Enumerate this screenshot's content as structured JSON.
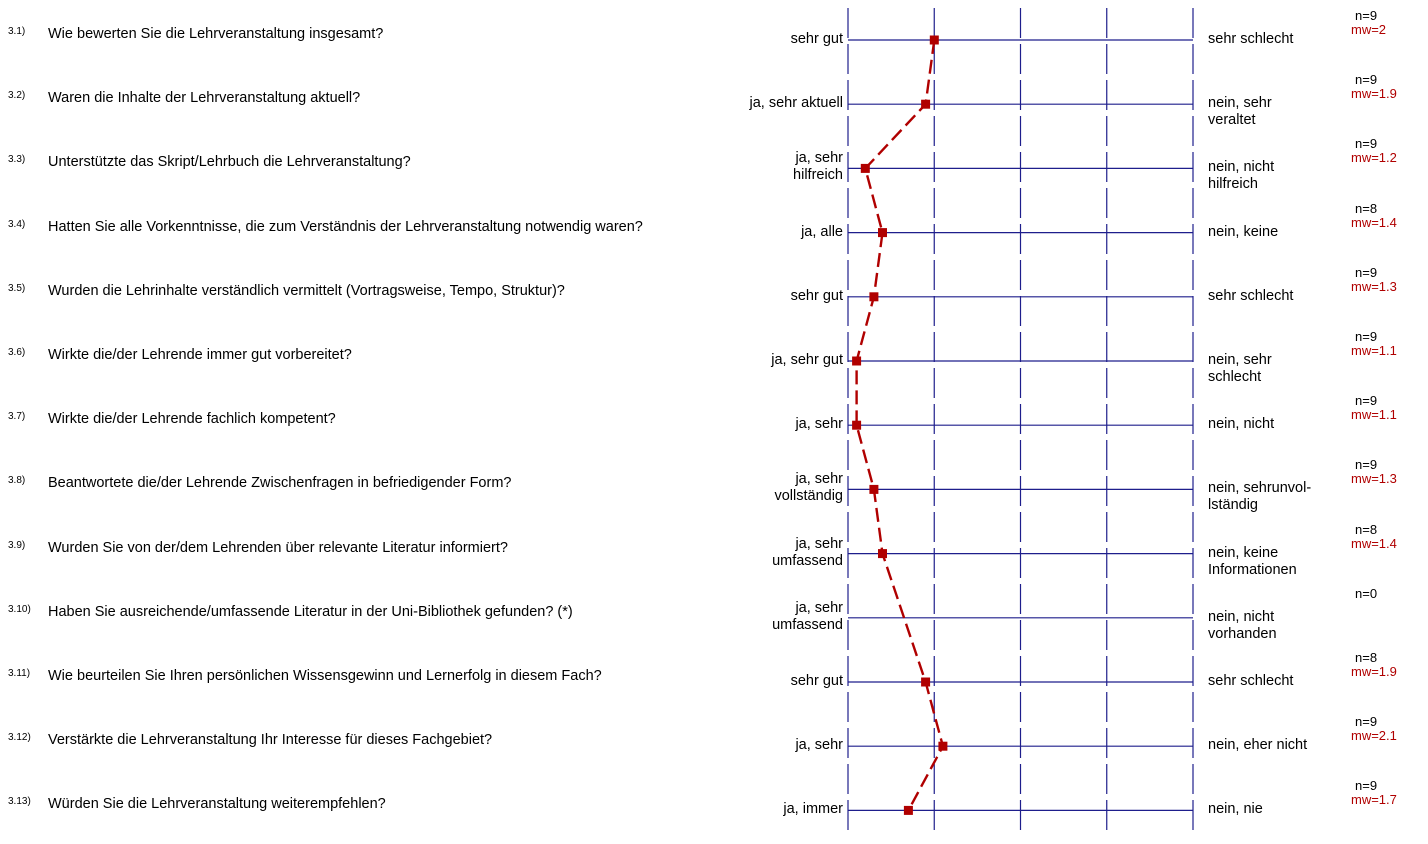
{
  "chart_data": {
    "type": "line",
    "scale": [
      1,
      5
    ],
    "grid": true,
    "colors": {
      "axis": "#1e1e8c",
      "line": "#b00000",
      "point": "#b00000"
    },
    "questions": [
      {
        "num": "3.1)",
        "text": "Wie bewerten Sie die Lehrveranstaltung insgesamt?",
        "left": "sehr gut",
        "right": "sehr schlecht",
        "n": "n=9",
        "mw_label": "mw=2",
        "mw": 2.0
      },
      {
        "num": "3.2)",
        "text": "Waren die Inhalte der Lehrveranstaltung aktuell?",
        "left": "ja, sehr aktuell",
        "right": "nein, sehr veraltet",
        "n": "n=9",
        "mw_label": "mw=1.9",
        "mw": 1.9
      },
      {
        "num": "3.3)",
        "text": "Unterstützte das Skript/Lehrbuch die Lehrveranstaltung?",
        "left": "ja, sehr hilfreich",
        "right": "nein, nicht hilfreich",
        "n": "n=9",
        "mw_label": "mw=1.2",
        "mw": 1.2
      },
      {
        "num": "3.4)",
        "text": "Hatten Sie alle Vorkenntnisse, die zum Verständnis der Lehrveranstaltung notwendig waren?",
        "left": "ja, alle",
        "right": "nein, keine",
        "n": "n=8",
        "mw_label": "mw=1.4",
        "mw": 1.4
      },
      {
        "num": "3.5)",
        "text": "Wurden die Lehrinhalte verständlich vermittelt (Vortragsweise, Tempo, Struktur)?",
        "left": "sehr gut",
        "right": "sehr schlecht",
        "n": "n=9",
        "mw_label": "mw=1.3",
        "mw": 1.3
      },
      {
        "num": "3.6)",
        "text": "Wirkte die/der Lehrende immer gut vorbereitet?",
        "left": "ja, sehr gut",
        "right": "nein, sehr schlecht",
        "n": "n=9",
        "mw_label": "mw=1.1",
        "mw": 1.1
      },
      {
        "num": "3.7)",
        "text": "Wirkte die/der Lehrende fachlich kompetent?",
        "left": "ja, sehr",
        "right": "nein, nicht",
        "n": "n=9",
        "mw_label": "mw=1.1",
        "mw": 1.1
      },
      {
        "num": "3.8)",
        "text": "Beantwortete die/der Lehrende Zwischenfragen in befriedigender Form?",
        "left": "ja, sehr vollständig",
        "right": "nein, sehrunvol- lständig",
        "n": "n=9",
        "mw_label": "mw=1.3",
        "mw": 1.3
      },
      {
        "num": "3.9)",
        "text": "Wurden Sie von der/dem Lehrenden über relevante Literatur informiert?",
        "left": "ja, sehr umfassend",
        "right": "nein, keine Informationen",
        "n": "n=8",
        "mw_label": "mw=1.4",
        "mw": 1.4
      },
      {
        "num": "3.10)",
        "text": "Haben Sie ausreichende/umfassende Literatur in der Uni-Bibliothek gefunden? (*)",
        "left": "ja, sehr umfassend",
        "right": "nein, nicht vorhanden",
        "n": "n=0",
        "mw_label": "",
        "mw": null
      },
      {
        "num": "3.11)",
        "text": "Wie beurteilen Sie Ihren persönlichen Wissensgewinn und Lernerfolg in diesem Fach?",
        "left": "sehr gut",
        "right": "sehr schlecht",
        "n": "n=8",
        "mw_label": "mw=1.9",
        "mw": 1.9
      },
      {
        "num": "3.12)",
        "text": "Verstärkte die Lehrveranstaltung Ihr Interesse für dieses Fachgebiet?",
        "left": "ja, sehr",
        "right": "nein, eher nicht",
        "n": "n=9",
        "mw_label": "mw=2.1",
        "mw": 2.1
      },
      {
        "num": "3.13)",
        "text": "Würden Sie die Lehrveranstaltung weiterempfehlen?",
        "left": "ja, immer",
        "right": "nein, nie",
        "n": "n=9",
        "mw_label": "mw=1.7",
        "mw": 1.7
      }
    ]
  }
}
